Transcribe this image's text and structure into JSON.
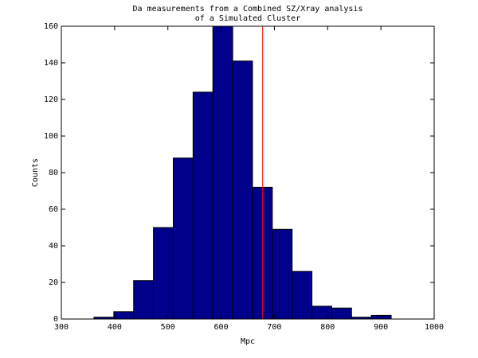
{
  "chart_data": {
    "type": "histogram",
    "title": [
      "Da measurements from a Combined SZ/Xray analysis",
      "of a Simulated Cluster"
    ],
    "xlabel": "Mpc",
    "ylabel": "Counts",
    "bins": [
      361.3,
      398.5,
      435.7,
      472.9,
      510.1,
      547.3,
      584.5,
      621.7,
      658.9,
      696.1,
      733.3,
      770.5,
      807.7,
      844.9,
      882.1,
      919.3
    ],
    "counts": [
      1,
      4,
      21,
      50,
      88,
      124,
      160,
      141,
      72,
      49,
      26,
      7,
      6,
      1,
      2
    ],
    "color": "#00008b",
    "edgecolor": "#000000",
    "reference_line": {
      "value": 678,
      "color": "#ff0000"
    },
    "xlim": [
      300,
      1000
    ],
    "xticks": [
      300,
      400,
      500,
      600,
      700,
      800,
      900,
      1000
    ],
    "ylim": [
      0,
      160
    ],
    "yticks": [
      0,
      20,
      40,
      60,
      80,
      100,
      120,
      140,
      160
    ]
  }
}
